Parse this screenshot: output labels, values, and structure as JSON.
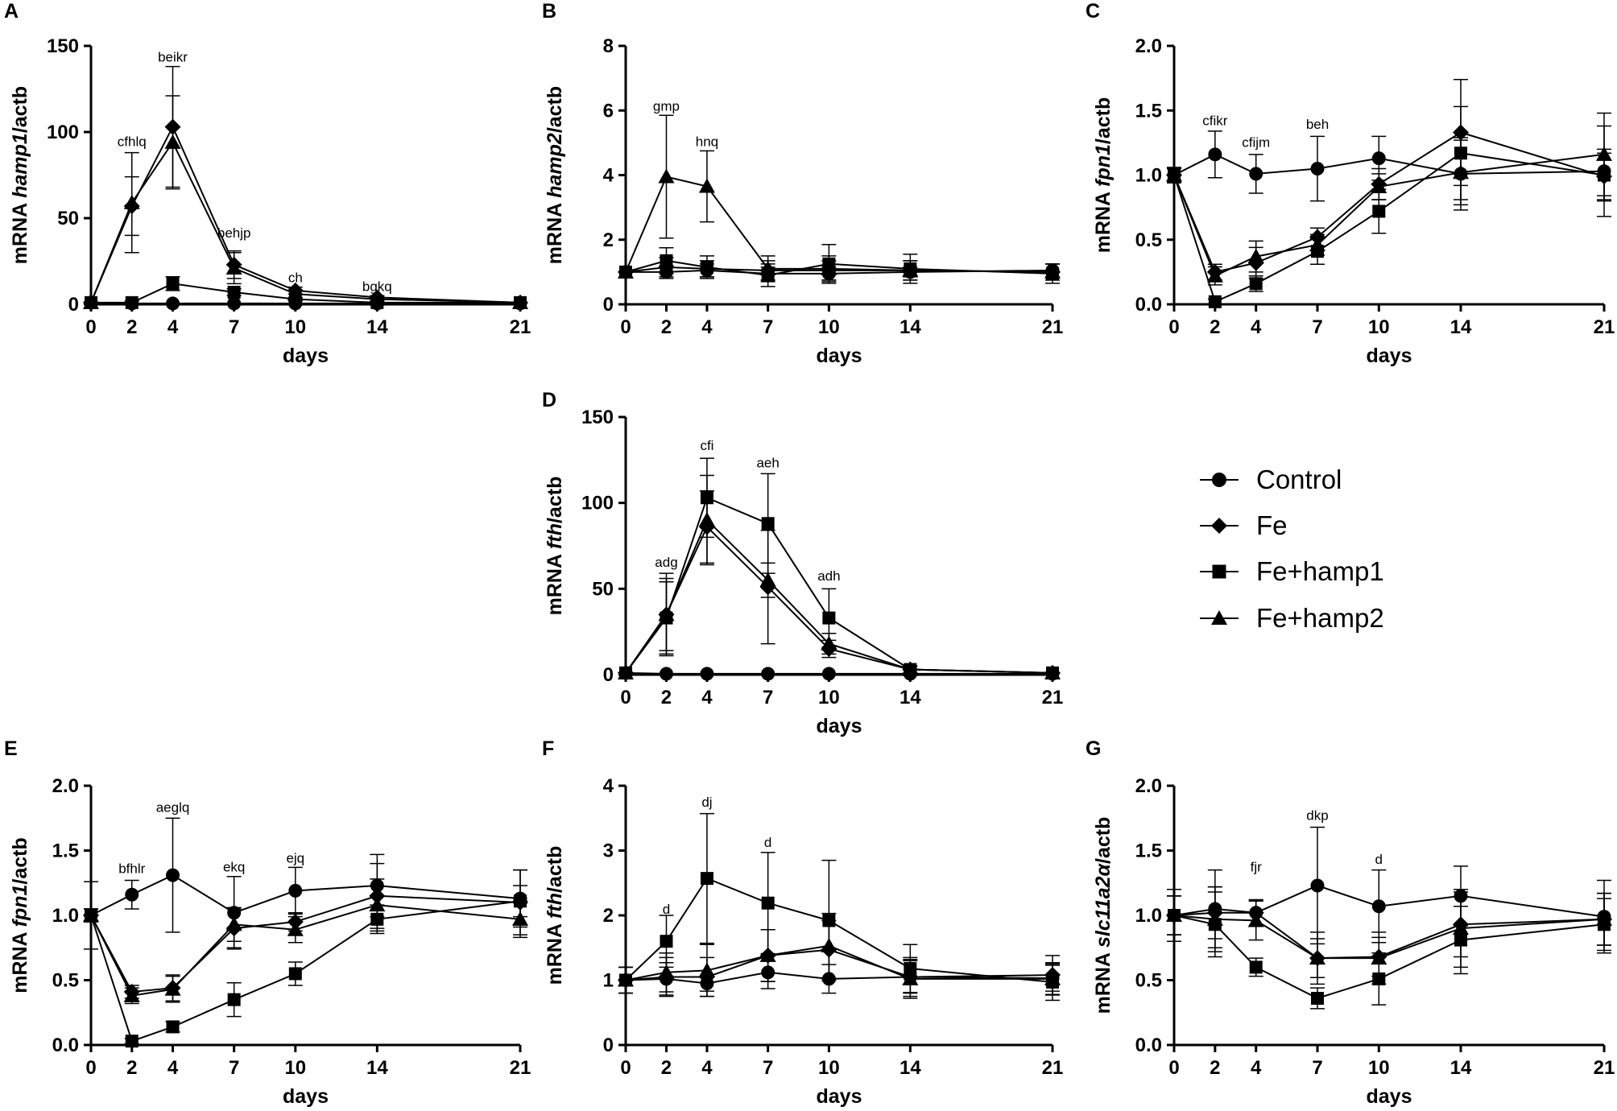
{
  "legend": [
    {
      "name": "Control",
      "marker": "circle"
    },
    {
      "name": "Fe",
      "marker": "diamond"
    },
    {
      "name": "Fe+hamp1",
      "marker": "square"
    },
    {
      "name": "Fe+hamp2",
      "marker": "triangle"
    }
  ],
  "chart_data": [
    {
      "panel": "A",
      "type": "line",
      "ylabel_pre": "mRNA ",
      "ylabel_gene": "hamp1",
      "ylabel_post": "/actb",
      "xlabel": "days",
      "ylim": [
        0,
        150
      ],
      "yticks": [
        0,
        50,
        100,
        150
      ],
      "ytick_labels": [
        "0",
        "50",
        "100",
        "150"
      ],
      "x": [
        0,
        2,
        4,
        7,
        10,
        14,
        21
      ],
      "series": [
        {
          "name": "Control",
          "marker": "circle",
          "values": [
            1,
            0.5,
            0.5,
            0.5,
            0.5,
            0.5,
            0.5
          ],
          "errors": [
            0,
            0,
            0,
            0,
            0,
            0,
            0
          ]
        },
        {
          "name": "Fe",
          "marker": "diamond",
          "values": [
            1,
            57,
            103,
            23,
            8,
            4,
            1
          ],
          "errors": [
            0,
            17,
            35,
            8,
            2,
            1,
            0
          ]
        },
        {
          "name": "Fe+hamp1",
          "marker": "square",
          "values": [
            1,
            1,
            12,
            7,
            3,
            1,
            1
          ],
          "errors": [
            0,
            1,
            4,
            2,
            1,
            0.5,
            0
          ]
        },
        {
          "name": "Fe+hamp2",
          "marker": "triangle",
          "values": [
            1,
            59,
            94,
            21,
            6,
            3,
            1
          ],
          "errors": [
            0,
            29,
            27,
            9,
            2,
            1,
            0
          ]
        }
      ],
      "annotations": [
        {
          "x": 2,
          "y": 89,
          "text": "cfhlq"
        },
        {
          "x": 4,
          "y": 138,
          "text": "beikr"
        },
        {
          "x": 7,
          "y": 36,
          "text": "behjp"
        },
        {
          "x": 10,
          "y": 10,
          "text": "ch"
        },
        {
          "x": 14,
          "y": 5,
          "text": "bgkq"
        }
      ]
    },
    {
      "panel": "B",
      "type": "line",
      "ylabel_pre": "mRNA ",
      "ylabel_gene": "hamp2",
      "ylabel_post": "/actb",
      "xlabel": "days",
      "ylim": [
        0,
        8
      ],
      "yticks": [
        0,
        2,
        4,
        6,
        8
      ],
      "ytick_labels": [
        "0",
        "2",
        "4",
        "6",
        "8"
      ],
      "x": [
        0,
        2,
        4,
        7,
        10,
        14,
        21
      ],
      "series": [
        {
          "name": "Control",
          "marker": "circle",
          "values": [
            1,
            1,
            1.05,
            0.95,
            0.95,
            1,
            1.05
          ],
          "errors": [
            0,
            0.2,
            0.2,
            0.2,
            0.2,
            0.15,
            0.2
          ]
        },
        {
          "name": "Fe",
          "marker": "diamond",
          "values": [
            1,
            1.15,
            1.1,
            1.05,
            1.05,
            1.05,
            1
          ],
          "errors": [
            0,
            0.3,
            0.25,
            0.3,
            0.3,
            0.3,
            0.25
          ]
        },
        {
          "name": "Fe+hamp1",
          "marker": "square",
          "values": [
            1,
            1.35,
            1.15,
            0.9,
            1.25,
            1.1,
            0.95
          ],
          "errors": [
            0,
            0.4,
            0.35,
            0.35,
            0.6,
            0.45,
            0.3
          ]
        },
        {
          "name": "Fe+hamp2",
          "marker": "triangle",
          "values": [
            1,
            3.95,
            3.65,
            1.1,
            1.1,
            1.05,
            1
          ],
          "errors": [
            0,
            1.9,
            1.1,
            0.4,
            0.4,
            0.3,
            0.25
          ]
        }
      ],
      "annotations": [
        {
          "x": 2,
          "y": 5.85,
          "text": "gmp"
        },
        {
          "x": 4,
          "y": 4.75,
          "text": "hnq"
        }
      ]
    },
    {
      "panel": "C",
      "type": "line",
      "ylabel_pre": "mRNA ",
      "ylabel_gene": "fpn1",
      "ylabel_post": "/actb",
      "xlabel": "days",
      "ylim": [
        0,
        2
      ],
      "yticks": [
        0,
        0.5,
        1,
        1.5,
        2
      ],
      "ytick_labels": [
        "0.0",
        "0.5",
        "1.0",
        "1.5",
        "2.0"
      ],
      "x": [
        0,
        2,
        4,
        7,
        10,
        14,
        21
      ],
      "series": [
        {
          "name": "Control",
          "marker": "circle",
          "values": [
            1,
            1.16,
            1.01,
            1.05,
            1.13,
            1.01,
            1.03
          ],
          "errors": [
            0.06,
            0.18,
            0.15,
            0.25,
            0.17,
            0.28,
            0.35
          ]
        },
        {
          "name": "Fe",
          "marker": "diamond",
          "values": [
            1,
            0.25,
            0.32,
            0.52,
            0.93,
            1.33,
            0.99
          ],
          "errors": [
            0.05,
            0.06,
            0.12,
            0.07,
            0.12,
            0.41,
            0.18
          ]
        },
        {
          "name": "Fe+hamp1",
          "marker": "square",
          "values": [
            1,
            0.02,
            0.16,
            0.41,
            0.72,
            1.17,
            1.0
          ],
          "errors": [
            0.05,
            0.02,
            0.06,
            0.1,
            0.17,
            0.36,
            0.2
          ]
        },
        {
          "name": "Fe+hamp2",
          "marker": "triangle",
          "values": [
            1,
            0.22,
            0.37,
            0.46,
            0.91,
            1.02,
            1.16
          ],
          "errors": [
            0.05,
            0.07,
            0.12,
            0.08,
            0.1,
            0.25,
            0.32
          ]
        }
      ],
      "annotations": [
        {
          "x": 2,
          "y": 1.35,
          "text": "cfikr"
        },
        {
          "x": 4,
          "y": 1.18,
          "text": "cfijm"
        },
        {
          "x": 7,
          "y": 1.32,
          "text": "beh"
        }
      ]
    },
    {
      "panel": "D",
      "type": "line",
      "ylabel_pre": "mRNA ",
      "ylabel_gene": "fth",
      "ylabel_post": "/actb",
      "xlabel": "days",
      "ylim": [
        0,
        150
      ],
      "yticks": [
        0,
        50,
        100,
        150
      ],
      "ytick_labels": [
        "0",
        "50",
        "100",
        "150"
      ],
      "x": [
        0,
        2,
        4,
        7,
        10,
        14,
        21
      ],
      "series": [
        {
          "name": "Control",
          "marker": "circle",
          "values": [
            1,
            0.5,
            0.5,
            0.5,
            0.5,
            0.5,
            0.5
          ],
          "errors": [
            0,
            0,
            0,
            0,
            0,
            0,
            0
          ]
        },
        {
          "name": "Fe",
          "marker": "diamond",
          "values": [
            1,
            35,
            86,
            51,
            15,
            3,
            1
          ],
          "errors": [
            0,
            21,
            21,
            33,
            5,
            2,
            0
          ]
        },
        {
          "name": "Fe+hamp1",
          "marker": "square",
          "values": [
            1,
            33,
            103,
            88,
            33,
            3,
            1
          ],
          "errors": [
            0,
            21,
            23,
            29,
            17,
            2,
            0
          ]
        },
        {
          "name": "Fe+hamp2",
          "marker": "triangle",
          "values": [
            1,
            35,
            90,
            55,
            18,
            3,
            1
          ],
          "errors": [
            0,
            24,
            26,
            10,
            6,
            2,
            0
          ]
        }
      ],
      "annotations": [
        {
          "x": 2,
          "y": 60,
          "text": "adg"
        },
        {
          "x": 4,
          "y": 128,
          "text": "cfi"
        },
        {
          "x": 7,
          "y": 118,
          "text": "aeh"
        },
        {
          "x": 10,
          "y": 52,
          "text": "adh"
        }
      ]
    },
    {
      "panel": "E",
      "type": "line",
      "ylabel_pre": "mRNA ",
      "ylabel_gene": "fpn1",
      "ylabel_post": "/actb",
      "xlabel": "days",
      "ylim": [
        0,
        2
      ],
      "yticks": [
        0,
        0.5,
        1,
        1.5,
        2
      ],
      "ytick_labels": [
        "0.0",
        "0.5",
        "1.0",
        "1.5",
        "2.0"
      ],
      "x": [
        0,
        2,
        4,
        7,
        10,
        14,
        21
      ],
      "series": [
        {
          "name": "Control",
          "marker": "circle",
          "values": [
            1,
            1.16,
            1.31,
            1.02,
            1.19,
            1.23,
            1.13
          ],
          "errors": [
            0.26,
            0.11,
            0.44,
            0.28,
            0.18,
            0.24,
            0.22
          ]
        },
        {
          "name": "Fe",
          "marker": "diamond",
          "values": [
            1,
            0.41,
            0.44,
            0.9,
            0.95,
            1.15,
            1.1
          ],
          "errors": [
            0.05,
            0.05,
            0.1,
            0.15,
            0.07,
            0.25,
            0.25
          ]
        },
        {
          "name": "Fe+hamp1",
          "marker": "square",
          "values": [
            1,
            0.03,
            0.14,
            0.35,
            0.55,
            0.97,
            1.11
          ],
          "errors": [
            0.05,
            0.02,
            0.04,
            0.13,
            0.09,
            0.11,
            0.12
          ]
        },
        {
          "name": "Fe+hamp2",
          "marker": "triangle",
          "values": [
            1,
            0.38,
            0.43,
            0.93,
            0.89,
            1.08,
            0.97
          ],
          "errors": [
            0.05,
            0.06,
            0.1,
            0.13,
            0.1,
            0.2,
            0.14
          ]
        }
      ],
      "annotations": [
        {
          "x": 2,
          "y": 1.29,
          "text": "bfhlr"
        },
        {
          "x": 4,
          "y": 1.76,
          "text": "aeglq"
        },
        {
          "x": 7,
          "y": 1.3,
          "text": "ekq"
        },
        {
          "x": 10,
          "y": 1.37,
          "text": "ejq"
        }
      ]
    },
    {
      "panel": "F",
      "type": "line",
      "ylabel_pre": "mRNA ",
      "ylabel_gene": "fth",
      "ylabel_post": "/actb",
      "xlabel": "days",
      "ylim": [
        0,
        4
      ],
      "yticks": [
        0,
        1,
        2,
        3,
        4
      ],
      "ytick_labels": [
        "0",
        "1",
        "2",
        "3",
        "4"
      ],
      "x": [
        0,
        2,
        4,
        7,
        10,
        14,
        21
      ],
      "series": [
        {
          "name": "Control",
          "marker": "circle",
          "values": [
            1,
            1.02,
            0.95,
            1.12,
            1.02,
            1.05,
            1.03
          ],
          "errors": [
            0.2,
            0.25,
            0.12,
            0.25,
            0.22,
            0.25,
            0.2
          ]
        },
        {
          "name": "Fe",
          "marker": "diamond",
          "values": [
            1,
            1.05,
            1.05,
            1.38,
            1.47,
            1.05,
            1.08
          ],
          "errors": [
            0.2,
            0.3,
            0.3,
            0.4,
            0.45,
            0.3,
            0.3
          ]
        },
        {
          "name": "Fe+hamp1",
          "marker": "square",
          "values": [
            1,
            1.6,
            2.57,
            2.19,
            1.92,
            1.18,
            0.97
          ],
          "errors": [
            0.2,
            0.4,
            1.0,
            0.78,
            0.93,
            0.37,
            0.28
          ]
        },
        {
          "name": "Fe+hamp2",
          "marker": "triangle",
          "values": [
            1,
            1.12,
            1.15,
            1.38,
            1.53,
            1.02,
            1.02
          ],
          "errors": [
            0.2,
            0.3,
            0.4,
            0.4,
            0.5,
            0.3,
            0.25
          ]
        }
      ],
      "annotations": [
        {
          "x": 2,
          "y": 1.95,
          "text": "d"
        },
        {
          "x": 4,
          "y": 3.6,
          "text": "dj"
        },
        {
          "x": 7,
          "y": 2.98,
          "text": "d"
        }
      ]
    },
    {
      "panel": "G",
      "type": "line",
      "ylabel_pre": "mRNA ",
      "ylabel_gene": "slc11a2α",
      "ylabel_post": "/actb",
      "xlabel": "days",
      "ylim": [
        0,
        2
      ],
      "yticks": [
        0,
        0.5,
        1,
        1.5,
        2
      ],
      "ytick_labels": [
        "0.0",
        "0.5",
        "1.0",
        "1.5",
        "2.0"
      ],
      "x": [
        0,
        2,
        4,
        7,
        10,
        14,
        21
      ],
      "series": [
        {
          "name": "Control",
          "marker": "circle",
          "values": [
            1,
            1.05,
            1.02,
            1.23,
            1.07,
            1.15,
            0.99
          ],
          "errors": [
            0.2,
            0.3,
            0.1,
            0.45,
            0.28,
            0.23,
            0.28
          ]
        },
        {
          "name": "Fe",
          "marker": "diamond",
          "values": [
            1,
            1.02,
            1.02,
            0.67,
            0.68,
            0.93,
            0.97
          ],
          "errors": [
            0.15,
            0.2,
            0.1,
            0.15,
            0.15,
            0.25,
            0.2
          ]
        },
        {
          "name": "Fe+hamp1",
          "marker": "square",
          "values": [
            1,
            0.93,
            0.6,
            0.36,
            0.51,
            0.81,
            0.93
          ],
          "errors": [
            0.15,
            0.25,
            0.07,
            0.08,
            0.2,
            0.26,
            0.2
          ]
        },
        {
          "name": "Fe+hamp2",
          "marker": "triangle",
          "values": [
            1,
            0.97,
            0.96,
            0.67,
            0.67,
            0.9,
            0.97
          ],
          "errors": [
            0.15,
            0.25,
            0.15,
            0.2,
            0.2,
            0.3,
            0.2
          ]
        }
      ],
      "annotations": [
        {
          "x": 4,
          "y": 1.3,
          "text": "fjr"
        },
        {
          "x": 7,
          "y": 1.7,
          "text": "dkp"
        },
        {
          "x": 10,
          "y": 1.36,
          "text": "d"
        }
      ]
    }
  ]
}
